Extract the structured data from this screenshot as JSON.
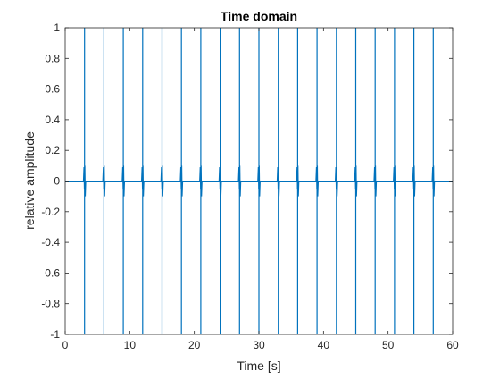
{
  "chart_data": {
    "type": "line",
    "title": "Time domain",
    "xlabel": "Time [s]",
    "ylabel": "relative amplitude",
    "xlim": [
      0,
      60
    ],
    "ylim": [
      -1,
      1
    ],
    "xticks": [
      0,
      10,
      20,
      30,
      40,
      50,
      60
    ],
    "yticks": [
      -1,
      -0.8,
      -0.6,
      -0.4,
      -0.2,
      0,
      0.2,
      0.4,
      0.6,
      0.8,
      1
    ],
    "xtick_labels": [
      "0",
      "10",
      "20",
      "30",
      "40",
      "50",
      "60"
    ],
    "ytick_labels": [
      "-1",
      "-0.8",
      "-0.6",
      "-0.4",
      "-0.2",
      "0",
      "0.2",
      "0.4",
      "0.6",
      "0.8",
      "1"
    ],
    "grid": false,
    "line_color": "#0072bd",
    "series": [
      {
        "pulse_times": [
          3,
          6,
          9,
          12,
          15,
          18,
          21,
          24,
          27,
          30,
          33,
          36,
          39,
          42,
          45,
          48,
          51,
          54,
          57
        ],
        "pulse_peak": 1,
        "pulse_trough": -1,
        "ringing_amplitude": 0.1,
        "baseline": 0
      }
    ]
  }
}
